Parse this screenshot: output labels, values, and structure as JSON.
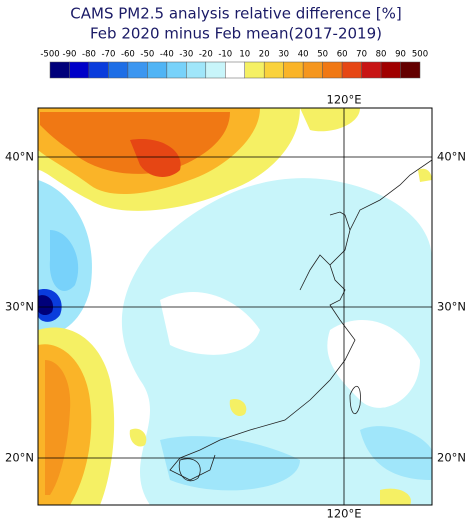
{
  "title": "CAMS PM2.5 analysis relative difference [%]",
  "subtitle": "Feb 2020 minus Feb mean(2017-2019)",
  "colorbar": {
    "labels": [
      "-500",
      "-90",
      "-80",
      "-70",
      "-60",
      "-50",
      "-40",
      "-30",
      "-20",
      "-10",
      "10",
      "20",
      "30",
      "40",
      "50",
      "60",
      "70",
      "80",
      "90",
      "500"
    ],
    "colors": [
      "#00007a",
      "#0000c8",
      "#0a3cdc",
      "#1e6ee6",
      "#3c96f0",
      "#50b4f5",
      "#78d2fa",
      "#a0e6fa",
      "#c8f5fa",
      "#ffffff",
      "#f5f064",
      "#fad23c",
      "#fab428",
      "#f5961e",
      "#f07814",
      "#e64614",
      "#c81414",
      "#a00000",
      "#640000"
    ]
  },
  "lat_labels": [
    "40°N",
    "30°N",
    "20°N"
  ],
  "lon_labels": [
    "120°E"
  ]
}
